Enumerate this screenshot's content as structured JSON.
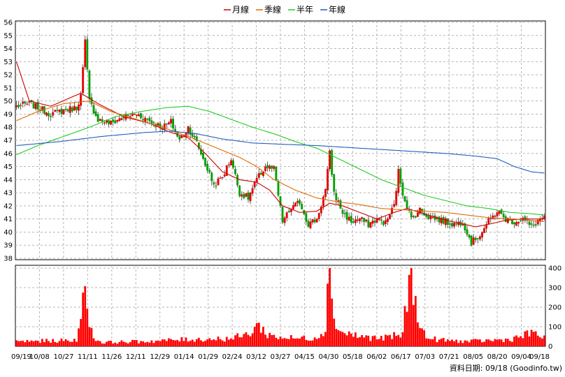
{
  "legend": [
    {
      "name": "月線",
      "color": "#cc0000"
    },
    {
      "name": "季線",
      "color": "#e06a00"
    },
    {
      "name": "半年",
      "color": "#22cc22"
    },
    {
      "name": "年線",
      "color": "#1f5fbf"
    }
  ],
  "footer": "資料日期: 09/18 (Goodinfo.tw)",
  "chart_data": {
    "type": "candlestick",
    "price_axis": {
      "min": 38,
      "max": 56,
      "ticks": [
        38,
        39,
        40,
        41,
        42,
        43,
        44,
        45,
        46,
        47,
        48,
        49,
        50,
        51,
        52,
        53,
        54,
        55,
        56
      ]
    },
    "volume_axis": {
      "min": 0,
      "max": 400,
      "ticks": [
        0,
        100,
        200,
        300,
        400
      ]
    },
    "date_labels": [
      "09/19",
      "10/08",
      "10/27",
      "11/11",
      "11/26",
      "12/11",
      "12/29",
      "01/14",
      "01/29",
      "02/24",
      "03/12",
      "03/27",
      "04/15",
      "04/30",
      "05/18",
      "06/02",
      "06/17",
      "07/03",
      "07/21",
      "08/05",
      "08/20",
      "09/04",
      "09/18"
    ],
    "price_anchors": [
      [
        0,
        49.6
      ],
      [
        6,
        49.8
      ],
      [
        10,
        49.5
      ],
      [
        16,
        49.0
      ],
      [
        22,
        49.3
      ],
      [
        28,
        49.5
      ],
      [
        30,
        50.4
      ],
      [
        32,
        54.5
      ],
      [
        34,
        50.0
      ],
      [
        38,
        48.6
      ],
      [
        44,
        48.3
      ],
      [
        50,
        48.8
      ],
      [
        56,
        49.0
      ],
      [
        62,
        48.5
      ],
      [
        68,
        48.0
      ],
      [
        72,
        48.4
      ],
      [
        76,
        47.0
      ],
      [
        80,
        48.0
      ],
      [
        84,
        46.8
      ],
      [
        88,
        45.2
      ],
      [
        92,
        43.6
      ],
      [
        96,
        44.2
      ],
      [
        100,
        45.6
      ],
      [
        104,
        43.0
      ],
      [
        108,
        42.6
      ],
      [
        112,
        44.0
      ],
      [
        116,
        45.0
      ],
      [
        120,
        44.8
      ],
      [
        124,
        40.8
      ],
      [
        128,
        41.8
      ],
      [
        132,
        42.3
      ],
      [
        136,
        40.6
      ],
      [
        140,
        41.0
      ],
      [
        144,
        43.2
      ],
      [
        146,
        46.0
      ],
      [
        148,
        43.0
      ],
      [
        152,
        41.5
      ],
      [
        156,
        40.8
      ],
      [
        160,
        41.0
      ],
      [
        164,
        40.6
      ],
      [
        168,
        41.0
      ],
      [
        172,
        40.7
      ],
      [
        176,
        42.0
      ],
      [
        178,
        44.6
      ],
      [
        180,
        43.0
      ],
      [
        184,
        41.0
      ],
      [
        188,
        41.7
      ],
      [
        192,
        41.2
      ],
      [
        196,
        41.0
      ],
      [
        200,
        40.8
      ],
      [
        204,
        40.6
      ],
      [
        208,
        40.8
      ],
      [
        212,
        39.2
      ],
      [
        216,
        39.8
      ],
      [
        220,
        40.8
      ],
      [
        224,
        41.6
      ],
      [
        228,
        41.0
      ],
      [
        232,
        40.8
      ],
      [
        236,
        41.0
      ],
      [
        240,
        40.4
      ],
      [
        244,
        41.0
      ],
      [
        246,
        41.1
      ]
    ],
    "moving_averages": {
      "月線": [
        [
          0,
          53.0
        ],
        [
          6,
          50.0
        ],
        [
          16,
          49.6
        ],
        [
          30,
          50.6
        ],
        [
          38,
          49.8
        ],
        [
          50,
          48.8
        ],
        [
          62,
          48.3
        ],
        [
          72,
          47.6
        ],
        [
          80,
          47.2
        ],
        [
          88,
          46.0
        ],
        [
          96,
          44.6
        ],
        [
          104,
          44.0
        ],
        [
          112,
          43.8
        ],
        [
          118,
          43.2
        ],
        [
          124,
          42.0
        ],
        [
          132,
          41.5
        ],
        [
          140,
          41.6
        ],
        [
          146,
          42.2
        ],
        [
          152,
          42.0
        ],
        [
          160,
          41.5
        ],
        [
          168,
          41.0
        ],
        [
          176,
          41.5
        ],
        [
          182,
          41.8
        ],
        [
          190,
          41.4
        ],
        [
          198,
          41.0
        ],
        [
          206,
          40.7
        ],
        [
          214,
          40.4
        ],
        [
          220,
          40.6
        ],
        [
          228,
          40.9
        ],
        [
          236,
          41.0
        ],
        [
          246,
          41.0
        ]
      ],
      "季線": [
        [
          0,
          48.5
        ],
        [
          10,
          49.2
        ],
        [
          22,
          49.8
        ],
        [
          34,
          50.0
        ],
        [
          44,
          49.2
        ],
        [
          56,
          48.6
        ],
        [
          68,
          48.0
        ],
        [
          80,
          47.3
        ],
        [
          92,
          46.5
        ],
        [
          104,
          45.7
        ],
        [
          112,
          45.0
        ],
        [
          120,
          44.0
        ],
        [
          130,
          43.2
        ],
        [
          140,
          42.6
        ],
        [
          150,
          42.3
        ],
        [
          160,
          42.1
        ],
        [
          170,
          41.8
        ],
        [
          180,
          41.7
        ],
        [
          190,
          41.6
        ],
        [
          200,
          41.5
        ],
        [
          210,
          41.3
        ],
        [
          220,
          41.1
        ],
        [
          232,
          41.0
        ],
        [
          246,
          40.8
        ]
      ],
      "半年": [
        [
          0,
          45.9
        ],
        [
          10,
          46.6
        ],
        [
          22,
          47.3
        ],
        [
          34,
          48.0
        ],
        [
          46,
          48.8
        ],
        [
          58,
          49.2
        ],
        [
          70,
          49.5
        ],
        [
          80,
          49.6
        ],
        [
          90,
          49.2
        ],
        [
          100,
          48.6
        ],
        [
          110,
          48.0
        ],
        [
          120,
          47.5
        ],
        [
          130,
          46.9
        ],
        [
          140,
          46.4
        ],
        [
          150,
          45.6
        ],
        [
          160,
          44.8
        ],
        [
          170,
          44.0
        ],
        [
          180,
          43.4
        ],
        [
          190,
          42.8
        ],
        [
          200,
          42.4
        ],
        [
          210,
          42.0
        ],
        [
          220,
          41.8
        ],
        [
          230,
          41.5
        ],
        [
          240,
          41.4
        ],
        [
          246,
          41.3
        ]
      ],
      "年線": [
        [
          0,
          46.6
        ],
        [
          20,
          46.9
        ],
        [
          40,
          47.3
        ],
        [
          60,
          47.6
        ],
        [
          72,
          47.7
        ],
        [
          84,
          47.5
        ],
        [
          96,
          47.1
        ],
        [
          110,
          46.8
        ],
        [
          124,
          46.7
        ],
        [
          140,
          46.6
        ],
        [
          160,
          46.4
        ],
        [
          180,
          46.2
        ],
        [
          200,
          46.0
        ],
        [
          214,
          45.8
        ],
        [
          224,
          45.6
        ],
        [
          232,
          45.0
        ],
        [
          240,
          44.6
        ],
        [
          246,
          44.5
        ]
      ]
    },
    "volume_anchors": [
      [
        0,
        25
      ],
      [
        28,
        30
      ],
      [
        30,
        230
      ],
      [
        32,
        230
      ],
      [
        34,
        150
      ],
      [
        36,
        40
      ],
      [
        40,
        20
      ],
      [
        60,
        25
      ],
      [
        80,
        35
      ],
      [
        100,
        40
      ],
      [
        108,
        60
      ],
      [
        112,
        110
      ],
      [
        116,
        70
      ],
      [
        120,
        50
      ],
      [
        130,
        40
      ],
      [
        140,
        45
      ],
      [
        144,
        100
      ],
      [
        146,
        420
      ],
      [
        148,
        180
      ],
      [
        150,
        80
      ],
      [
        160,
        50
      ],
      [
        170,
        40
      ],
      [
        180,
        60
      ],
      [
        182,
        260
      ],
      [
        184,
        330
      ],
      [
        186,
        300
      ],
      [
        188,
        90
      ],
      [
        192,
        40
      ],
      [
        200,
        30
      ],
      [
        210,
        25
      ],
      [
        220,
        30
      ],
      [
        230,
        35
      ],
      [
        238,
        60
      ],
      [
        242,
        70
      ],
      [
        246,
        40
      ]
    ]
  }
}
